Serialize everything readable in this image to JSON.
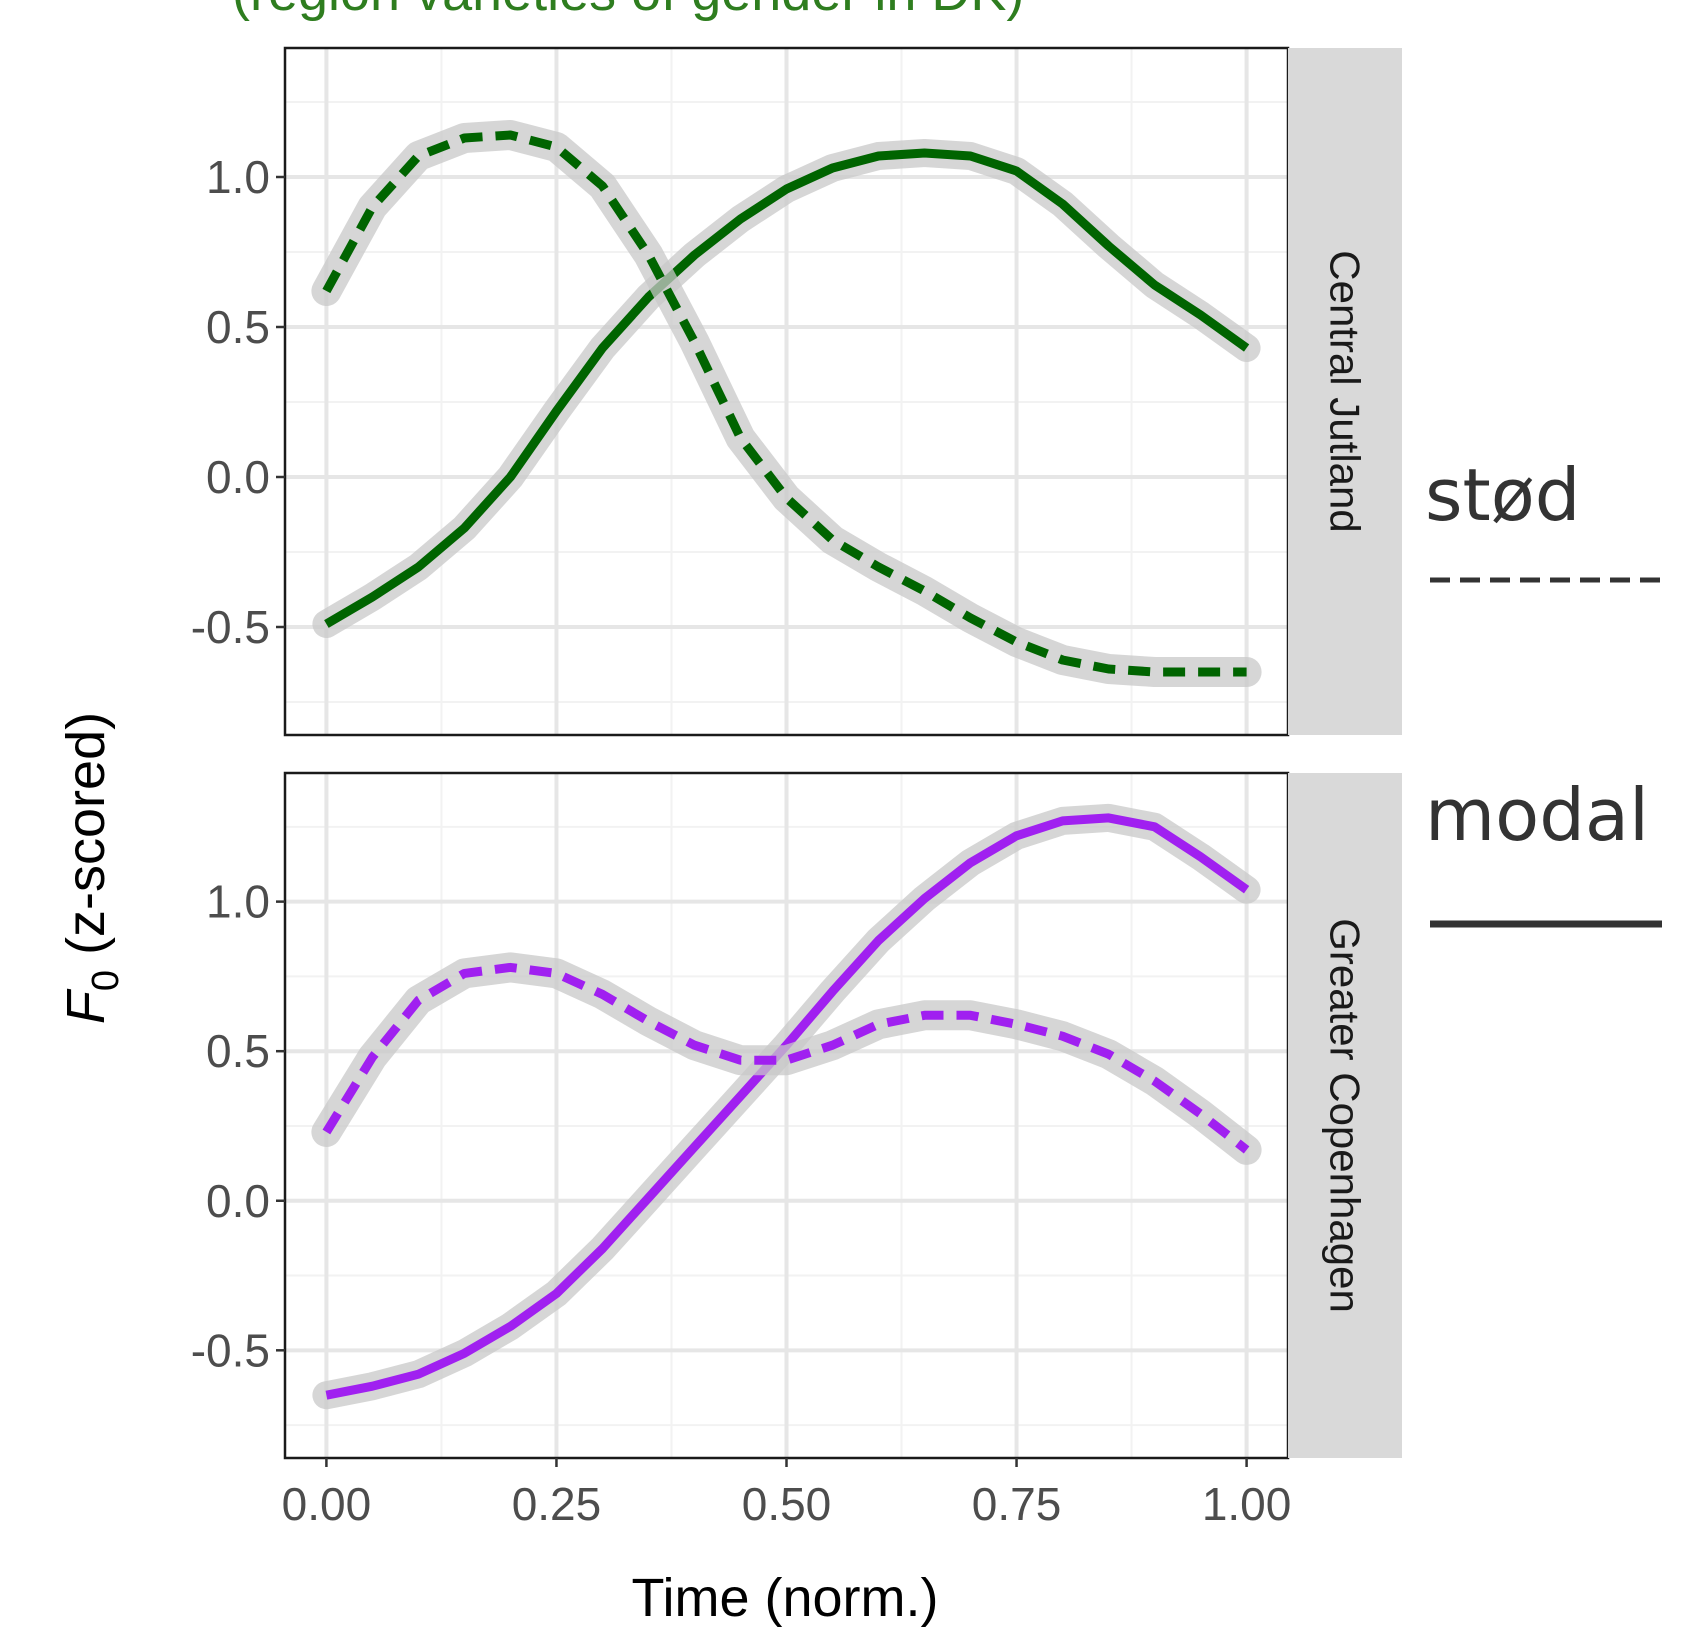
{
  "top_caption": "(region varieties of gender in DK)",
  "chart_data": {
    "type": "line",
    "x_label": "Time (norm.)",
    "y_label_main": "F",
    "y_label_sub": "0",
    "y_label_rest": " (z-scored)",
    "x_ticks": [
      "0.00",
      "0.25",
      "0.50",
      "0.75",
      "1.00"
    ],
    "x_tick_values": [
      0,
      0.25,
      0.5,
      0.75,
      1.0
    ],
    "y_ticks": [
      "-0.5",
      "0.0",
      "0.5",
      "1.0"
    ],
    "y_tick_values": [
      -0.5,
      0,
      0.5,
      1.0
    ],
    "xlim": [
      -0.045,
      1.045
    ],
    "ylim": [
      -0.86,
      1.43
    ],
    "grid": true,
    "legend": {
      "position": "right",
      "items": [
        {
          "label": "stød",
          "linetype": "dashed"
        },
        {
          "label": "modal",
          "linetype": "solid"
        }
      ]
    },
    "panels": [
      {
        "strip": "Central Jutland",
        "color": "#006400",
        "series": [
          {
            "name": "modal",
            "linetype": "solid",
            "x": [
              0,
              0.05,
              0.1,
              0.15,
              0.2,
              0.25,
              0.3,
              0.35,
              0.4,
              0.45,
              0.5,
              0.55,
              0.6,
              0.65,
              0.7,
              0.75,
              0.8,
              0.85,
              0.9,
              0.95,
              1.0
            ],
            "y": [
              -0.49,
              -0.4,
              -0.3,
              -0.17,
              0.0,
              0.22,
              0.43,
              0.6,
              0.74,
              0.86,
              0.96,
              1.03,
              1.07,
              1.08,
              1.07,
              1.02,
              0.91,
              0.77,
              0.64,
              0.54,
              0.43
            ]
          },
          {
            "name": "stød",
            "linetype": "dashed",
            "x": [
              0,
              0.05,
              0.1,
              0.15,
              0.2,
              0.25,
              0.3,
              0.35,
              0.4,
              0.45,
              0.5,
              0.55,
              0.6,
              0.65,
              0.7,
              0.75,
              0.8,
              0.85,
              0.9,
              0.95,
              1.0
            ],
            "y": [
              0.62,
              0.9,
              1.07,
              1.13,
              1.14,
              1.1,
              0.97,
              0.74,
              0.45,
              0.13,
              -0.07,
              -0.21,
              -0.3,
              -0.38,
              -0.47,
              -0.55,
              -0.61,
              -0.64,
              -0.65,
              -0.65,
              -0.65
            ]
          }
        ]
      },
      {
        "strip": "Greater Copenhagen",
        "color": "#a020f0",
        "series": [
          {
            "name": "modal",
            "linetype": "solid",
            "x": [
              0,
              0.05,
              0.1,
              0.15,
              0.2,
              0.25,
              0.3,
              0.35,
              0.4,
              0.45,
              0.5,
              0.55,
              0.6,
              0.65,
              0.7,
              0.75,
              0.8,
              0.85,
              0.9,
              0.95,
              1.0
            ],
            "y": [
              -0.65,
              -0.62,
              -0.58,
              -0.51,
              -0.42,
              -0.31,
              -0.16,
              0.01,
              0.18,
              0.35,
              0.52,
              0.7,
              0.87,
              1.01,
              1.13,
              1.22,
              1.27,
              1.28,
              1.25,
              1.15,
              1.04
            ]
          },
          {
            "name": "stød",
            "linetype": "dashed",
            "x": [
              0,
              0.05,
              0.1,
              0.15,
              0.2,
              0.25,
              0.3,
              0.35,
              0.4,
              0.45,
              0.5,
              0.55,
              0.6,
              0.65,
              0.7,
              0.75,
              0.8,
              0.85,
              0.9,
              0.95,
              1.0
            ],
            "y": [
              0.23,
              0.48,
              0.67,
              0.76,
              0.78,
              0.76,
              0.69,
              0.6,
              0.52,
              0.47,
              0.47,
              0.52,
              0.59,
              0.62,
              0.62,
              0.59,
              0.55,
              0.49,
              0.4,
              0.29,
              0.17
            ]
          }
        ]
      }
    ]
  }
}
